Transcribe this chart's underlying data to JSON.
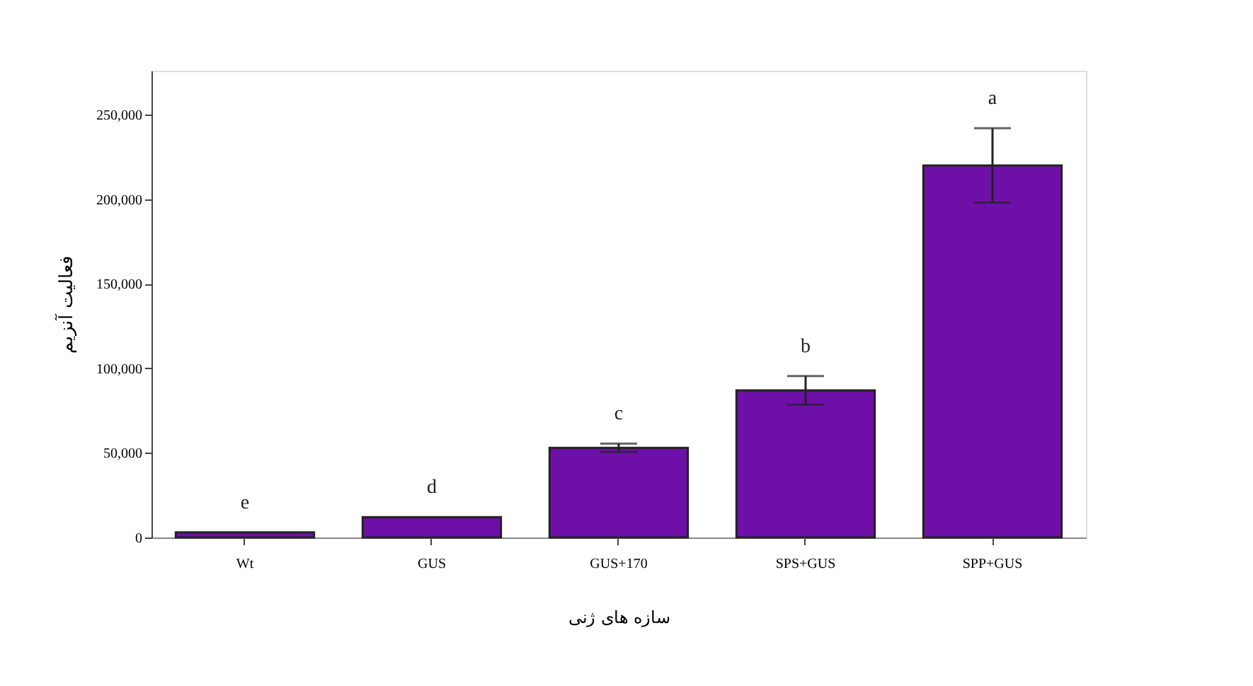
{
  "chart_data": {
    "type": "bar",
    "xlabel": "سازه های ژنی",
    "ylabel": "فعالیت آنزیم",
    "categories": [
      "Wt",
      "GUS",
      "GUS+170",
      "SPS+GUS",
      "SPP+GUS"
    ],
    "values": [
      3000,
      12000,
      53000,
      87000,
      220000
    ],
    "errors": [
      null,
      null,
      2500,
      8500,
      22000
    ],
    "color": "#6e0fa8",
    "ylim": [
      0,
      276000
    ],
    "yticks": [
      {
        "value": 0,
        "label": "0"
      },
      {
        "value": 50000,
        "label": "50,000"
      },
      {
        "value": 100000,
        "label": "100,000"
      },
      {
        "value": 150000,
        "label": "150,000"
      },
      {
        "value": 200000,
        "label": "200,000"
      },
      {
        "value": 250000,
        "label": "250,000"
      }
    ],
    "annotations": [
      "e",
      "d",
      "c",
      "b",
      "a"
    ],
    "grid": false
  }
}
